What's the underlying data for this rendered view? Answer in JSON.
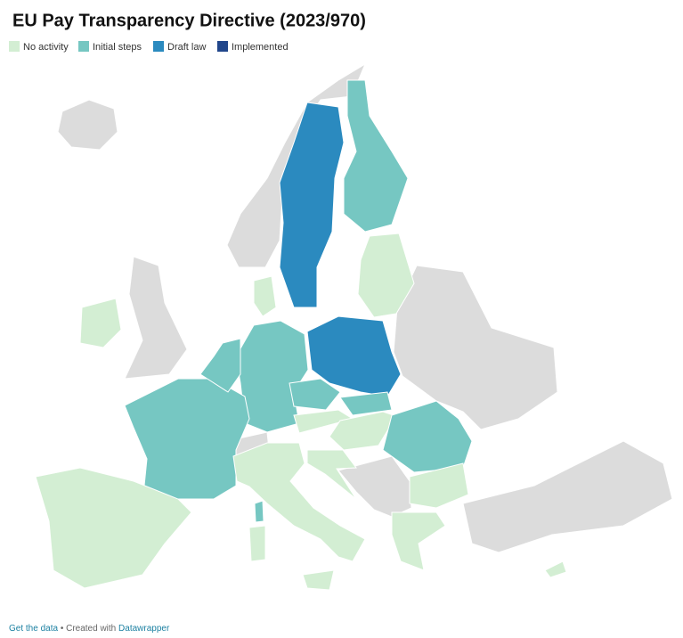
{
  "map": {
    "title": "EU Pay Transparency Directive (2023/970)",
    "legend": [
      {
        "label": "No activity",
        "color": "#d3eed3"
      },
      {
        "label": "Initial steps",
        "color": "#76c7c2"
      },
      {
        "label": "Draft law",
        "color": "#2b8abf"
      },
      {
        "label": "Implemented",
        "color": "#21468b"
      }
    ],
    "no_data_color": "#dcdcdc",
    "regions": [
      {
        "status": null
      },
      {
        "status": null
      },
      {
        "status": null
      },
      {
        "status": null
      },
      {
        "status": null
      },
      {
        "status": null
      },
      {
        "status": 2
      },
      {
        "status": 1
      },
      {
        "status": 0
      },
      {
        "status": 2
      },
      {
        "status": 1
      },
      {
        "status": 1
      },
      {
        "status": 0
      },
      {
        "status": 0
      },
      {
        "status": 1
      },
      {
        "status": 0
      },
      {
        "status": 0
      },
      {
        "status": 1
      },
      {
        "status": 0
      },
      {
        "status": 1
      },
      {
        "status": 0
      },
      {
        "status": 0
      },
      {
        "status": 0
      },
      {
        "status": 1
      },
      {
        "status": 0
      },
      {
        "status": 0
      },
      {
        "status": 0
      }
    ],
    "footer": {
      "link": "Get the data",
      "separator": " • Created with ",
      "brand": "Datawrapper"
    }
  }
}
